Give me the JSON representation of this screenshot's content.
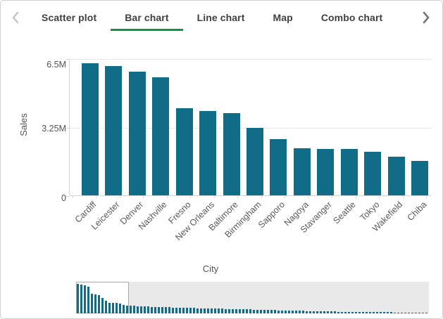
{
  "colors": {
    "accent_green": "#0c9747",
    "bar_teal": "#116d87",
    "tab_text": "#404040",
    "axis_text": "#545454",
    "disabled_chevron": "#c8c8c8",
    "enabled_chevron": "#757575",
    "minimap_bg": "#e9e9e9"
  },
  "tabs": {
    "active_index": 1,
    "items": [
      {
        "label": "Scatter plot"
      },
      {
        "label": "Bar chart"
      },
      {
        "label": "Line chart"
      },
      {
        "label": "Map"
      },
      {
        "label": "Combo chart"
      }
    ],
    "prev_icon": "chevron-left-icon",
    "next_icon": "chevron-right-icon"
  },
  "chart_data": {
    "type": "bar",
    "title": "",
    "xlabel": "City",
    "ylabel": "Sales",
    "value_unit": "millions",
    "ylim": [
      0,
      6.5
    ],
    "grid": "horizontal",
    "categories": [
      "Cardiff",
      "Leicester",
      "Denver",
      "Nashville",
      "Fresno",
      "New Orleans",
      "Baltimore",
      "Birmingham",
      "Sapporo",
      "Nagoya",
      "Stavanger",
      "Seattle",
      "Tokyo",
      "Wakefield",
      "Chiba"
    ],
    "values": [
      6.27,
      6.13,
      5.87,
      5.6,
      4.13,
      4.0,
      3.9,
      3.2,
      2.67,
      2.23,
      2.2,
      2.19,
      2.07,
      1.83,
      1.63
    ],
    "yticks": [
      {
        "label": "6.5M",
        "value": 6.5
      },
      {
        "label": "3.25M",
        "value": 3.25
      },
      {
        "label": "0",
        "value": 0
      }
    ],
    "minimap": {
      "window_start_index": 0,
      "window_bar_count": 15,
      "values": [
        0.96,
        0.94,
        0.9,
        0.86,
        0.64,
        0.62,
        0.6,
        0.49,
        0.41,
        0.34,
        0.34,
        0.34,
        0.32,
        0.28,
        0.25,
        0.245,
        0.24,
        0.235,
        0.23,
        0.225,
        0.22,
        0.215,
        0.21,
        0.205,
        0.2,
        0.197,
        0.194,
        0.191,
        0.188,
        0.185,
        0.182,
        0.179,
        0.176,
        0.173,
        0.17,
        0.167,
        0.164,
        0.161,
        0.158,
        0.155,
        0.152,
        0.149,
        0.146,
        0.143,
        0.14,
        0.137,
        0.134,
        0.131,
        0.128,
        0.125,
        0.122,
        0.119,
        0.116,
        0.113,
        0.11,
        0.107,
        0.104,
        0.101,
        0.098,
        0.095,
        0.092,
        0.089,
        0.086,
        0.083,
        0.08,
        0.077,
        0.075,
        0.072,
        0.07,
        0.067,
        0.065,
        0.062,
        0.06,
        0.058,
        0.056,
        0.054,
        0.052,
        0.05,
        0.048,
        0.046,
        0.044,
        0.043,
        0.042,
        0.041,
        0.04,
        0.039,
        0.038,
        0.037,
        0.036,
        0.035,
        0.034,
        0.033,
        0.032,
        0.031,
        0.03,
        0.029,
        0.028,
        0.027,
        0.026,
        0.025
      ]
    }
  }
}
